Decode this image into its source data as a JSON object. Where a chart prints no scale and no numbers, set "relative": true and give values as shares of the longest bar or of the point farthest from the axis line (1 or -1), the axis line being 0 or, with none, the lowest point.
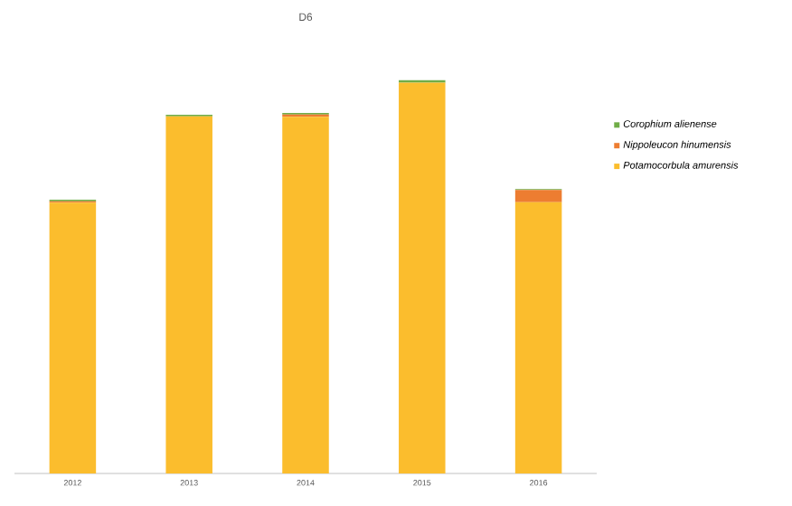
{
  "chart_data": {
    "type": "bar",
    "title": "D6",
    "categories": [
      "2012",
      "2013",
      "2014",
      "2015",
      "2016"
    ],
    "stacked": true,
    "relative": true,
    "legend": "right",
    "series": [
      {
        "name": "*Potamocorbula amurensis*",
        "color": "#fbbd2d",
        "values": [
          0.689,
          0.908,
          0.907,
          0.994,
          0.69
        ]
      },
      {
        "name": "*Nippoleucon hinumensis*",
        "color": "#ed7d31",
        "values": [
          0.003,
          0,
          0.006,
          0,
          0.031
        ]
      },
      {
        "name": "*Corophium alienense*",
        "color": "#70ad47",
        "values": [
          0.004,
          0.004,
          0.004,
          0.006,
          0.002
        ]
      }
    ]
  }
}
